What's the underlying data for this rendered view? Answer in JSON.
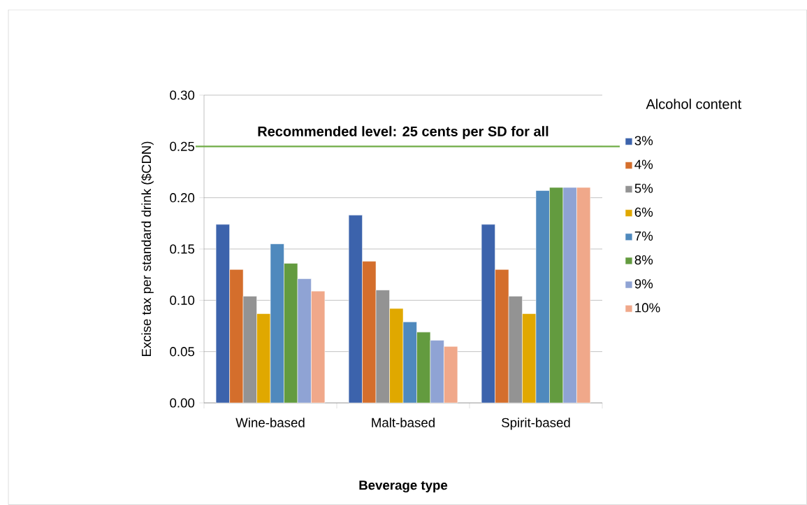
{
  "chart_data": {
    "type": "bar",
    "xlabel": "Beverage type",
    "ylabel": "Excise tax per standard drink ($CDN)",
    "legend_title": "Alcohol content",
    "categories": [
      "Wine-based",
      "Malt-based",
      "Spirit-based"
    ],
    "series": [
      {
        "name": "3%",
        "color": "#3c63ac",
        "values": [
          0.174,
          0.183,
          0.174
        ]
      },
      {
        "name": "4%",
        "color": "#d46e2c",
        "values": [
          0.13,
          0.138,
          0.13
        ]
      },
      {
        "name": "5%",
        "color": "#939393",
        "values": [
          0.104,
          0.11,
          0.104
        ]
      },
      {
        "name": "6%",
        "color": "#e0a800",
        "values": [
          0.087,
          0.092,
          0.087
        ]
      },
      {
        "name": "7%",
        "color": "#4f89bd",
        "values": [
          0.155,
          0.079,
          0.207
        ]
      },
      {
        "name": "8%",
        "color": "#639b3f",
        "values": [
          0.136,
          0.069,
          0.21
        ]
      },
      {
        "name": "9%",
        "color": "#8fa3d4",
        "values": [
          0.121,
          0.061,
          0.21
        ]
      },
      {
        "name": "10%",
        "color": "#f0a88a",
        "values": [
          0.109,
          0.055,
          0.21
        ]
      }
    ],
    "ylim": [
      0,
      0.3
    ],
    "yticks": [
      {
        "value": 0,
        "label": "0.00"
      },
      {
        "value": 0.05,
        "label": "0.05"
      },
      {
        "value": 0.1,
        "label": "0.10"
      },
      {
        "value": 0.15,
        "label": "0.15"
      },
      {
        "value": 0.2,
        "label": "0.20"
      },
      {
        "value": 0.25,
        "label": "0.25"
      },
      {
        "value": 0.3,
        "label": "0.30"
      }
    ],
    "ref_lines": [
      {
        "axis": "y",
        "value": 0.25,
        "label": "Recommended level: 25 cents per SD for all",
        "color": "#70ad47"
      }
    ],
    "grid": "y",
    "legend": "right"
  }
}
